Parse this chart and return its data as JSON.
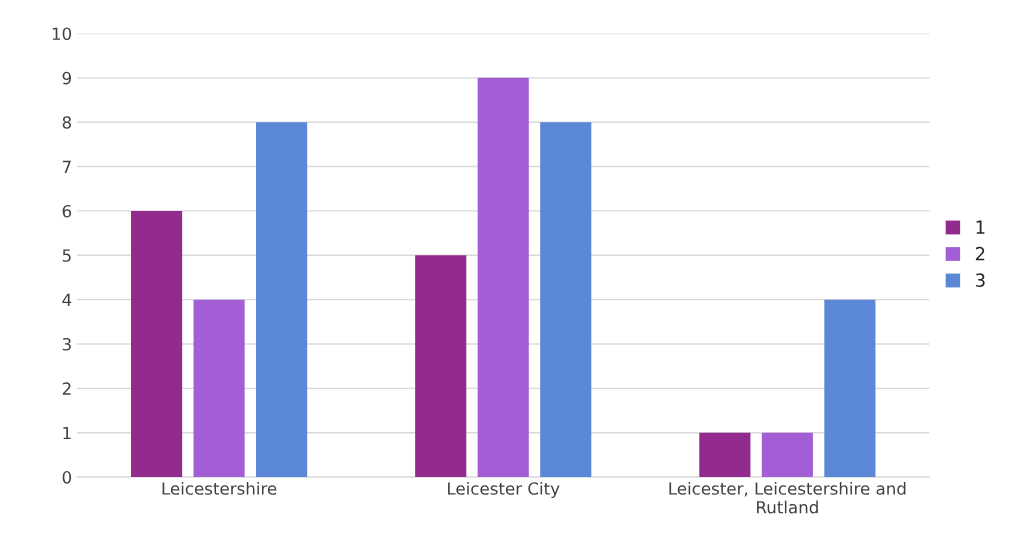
{
  "chart_data": {
    "type": "bar",
    "categories": [
      "Leicestershire",
      "Leicester City",
      "Leicester, Leicestershire and Rutland"
    ],
    "series": [
      {
        "name": "1",
        "color": "#932b8f",
        "values": [
          6,
          5,
          1
        ]
      },
      {
        "name": "2",
        "color": "#a35ed6",
        "values": [
          4,
          9,
          1
        ]
      },
      {
        "name": "3",
        "color": "#5a87d6",
        "values": [
          8,
          8,
          4
        ]
      }
    ],
    "ylim": [
      0,
      10
    ],
    "yticks": [
      0,
      1,
      2,
      3,
      4,
      5,
      6,
      7,
      8,
      9,
      10
    ],
    "grid": "y",
    "legend": "right"
  }
}
